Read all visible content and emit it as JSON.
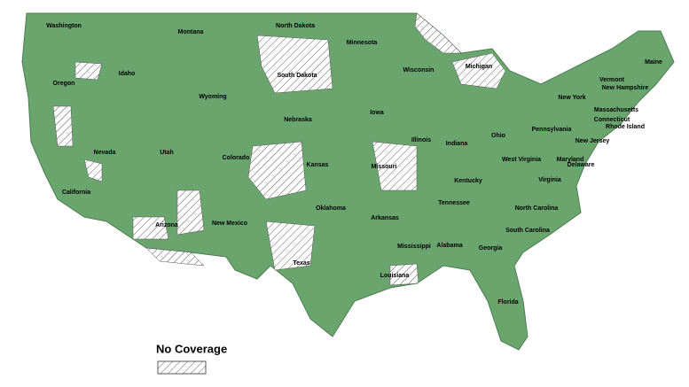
{
  "map": {
    "states": [
      "Washington",
      "Montana",
      "North Dakota",
      "Minnesota",
      "Wisconsin",
      "Michigan",
      "Maine",
      "Vermont",
      "New Hampshire",
      "Oregon",
      "Idaho",
      "Wyoming",
      "South Dakota",
      "Iowa",
      "New York",
      "Massachusetts",
      "Connecticut",
      "Rhode Island",
      "Nebraska",
      "Illinois",
      "Indiana",
      "Ohio",
      "Pennsylvania",
      "New Jersey",
      "Nevada",
      "Utah",
      "Colorado",
      "Kansas",
      "Missouri",
      "West Virginia",
      "Kentucky",
      "Maryland",
      "Delaware",
      "Virginia",
      "California",
      "Tennessee",
      "North Carolina",
      "Oklahoma",
      "Arkansas",
      "New Mexico",
      "Arizona",
      "South Carolina",
      "Mississippi",
      "Alabama",
      "Georgia",
      "Texas",
      "Louisiana",
      "Florida"
    ]
  },
  "legend": {
    "label": "No Coverage"
  }
}
